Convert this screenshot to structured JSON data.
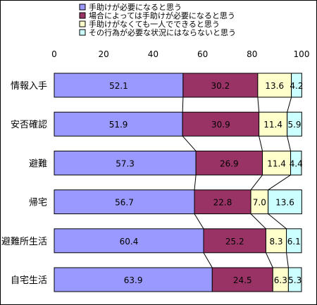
{
  "chart_data": {
    "type": "bar",
    "orientation": "horizontal",
    "stacked": true,
    "categories": [
      "情報入手",
      "安否確認",
      "避難",
      "帰宅",
      "避難所生活",
      "自宅生活"
    ],
    "series": [
      {
        "name": "手助けが必要になると思う",
        "color": "#9999ff",
        "values": [
          52.1,
          51.9,
          57.3,
          56.7,
          60.4,
          63.9
        ]
      },
      {
        "name": "場合によっては手助けが必要になると思う",
        "color": "#993366",
        "values": [
          30.2,
          30.9,
          26.9,
          22.8,
          25.2,
          24.5
        ]
      },
      {
        "name": "手助けがなくても一人でできると思う",
        "color": "#ffffcc",
        "values": [
          13.6,
          11.4,
          11.4,
          7.0,
          8.3,
          6.3
        ]
      },
      {
        "name": "その行為が必要な状況にはならないと思う",
        "color": "#ccffff",
        "values": [
          4.2,
          5.9,
          4.4,
          13.6,
          6.1,
          5.3
        ]
      }
    ],
    "value_labels": [
      [
        "52.1",
        "51.9",
        "57.3",
        "56.7",
        "60.4",
        "63.9"
      ],
      [
        "30.2",
        "30.9",
        "26.9",
        "22.8",
        "25.2",
        "24.5"
      ],
      [
        "13.6",
        "11.4",
        "11.4",
        "7.0",
        "8.3",
        "6.3"
      ],
      [
        "4.2",
        "5.9",
        "4.4",
        "13.6",
        "6.1",
        "5.3"
      ]
    ],
    "x_ticks": [
      "0",
      "20",
      "40",
      "60",
      "80",
      "100"
    ],
    "xlim": [
      0,
      100
    ],
    "legend_position": "top",
    "series_lines": true,
    "grid": false
  }
}
